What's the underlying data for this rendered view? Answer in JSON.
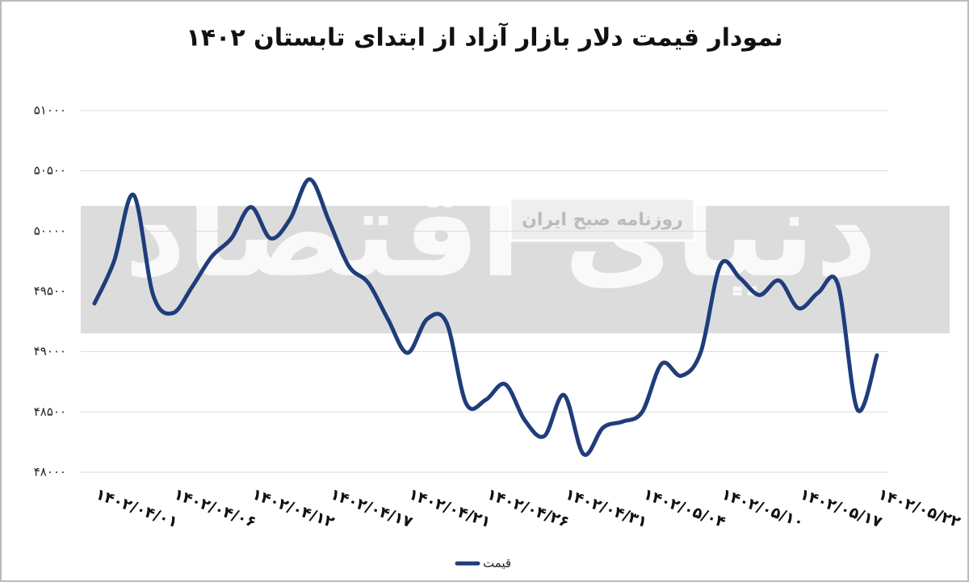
{
  "chart_data": {
    "type": "line",
    "title": "نمودار قیمت دلار بازار آزاد از ابتدای تابستان ۱۴۰۲",
    "watermark": "روزنامه صبح ایران",
    "watermark_logo": "دنیای اقتصاد",
    "categories": [
      "۱۴۰۲/۰۴/۰۱",
      null,
      null,
      null,
      "۱۴۰۲/۰۴/۰۶",
      null,
      null,
      null,
      "۱۴۰۲/۰۴/۱۲",
      null,
      null,
      null,
      "۱۴۰۲/۰۴/۱۷",
      null,
      null,
      null,
      "۱۴۰۲/۰۴/۲۱",
      null,
      null,
      null,
      "۱۴۰۲/۰۴/۲۶",
      null,
      null,
      null,
      "۱۴۰۲/۰۴/۳۱",
      null,
      null,
      null,
      "۱۴۰۲/۰۵/۰۴",
      null,
      null,
      null,
      "۱۴۰۲/۰۵/۱۰",
      null,
      null,
      null,
      "۱۴۰۲/۰۵/۱۷",
      null,
      null,
      null,
      "۱۴۰۲/۰۵/۲۲"
    ],
    "series": [
      {
        "name": "قیمت",
        "color": "#1f3d7a",
        "values": [
          49400,
          49750,
          50300,
          49470,
          49320,
          49540,
          49790,
          49940,
          50200,
          49940,
          50100,
          50430,
          50080,
          49710,
          49570,
          49270,
          48990,
          49270,
          49240,
          48570,
          48600,
          48730,
          48430,
          48300,
          48640,
          48150,
          48370,
          48420,
          48500,
          48900,
          48800,
          49000,
          49720,
          49610,
          49470,
          49590,
          49360,
          49490,
          49560,
          48520,
          48970
        ]
      }
    ],
    "ylim": [
      48000,
      51000
    ],
    "yticks": [
      {
        "value": 48000,
        "label": "۴۸۰۰۰"
      },
      {
        "value": 48500,
        "label": "۴۸۵۰۰"
      },
      {
        "value": 49000,
        "label": "۴۹۰۰۰"
      },
      {
        "value": 49500,
        "label": "۴۹۵۰۰"
      },
      {
        "value": 50000,
        "label": "۵۰۰۰۰"
      },
      {
        "value": 50500,
        "label": "۵۰۵۰۰"
      },
      {
        "value": 51000,
        "label": "۵۱۰۰۰"
      }
    ],
    "grid": true,
    "legend": "bottom"
  }
}
